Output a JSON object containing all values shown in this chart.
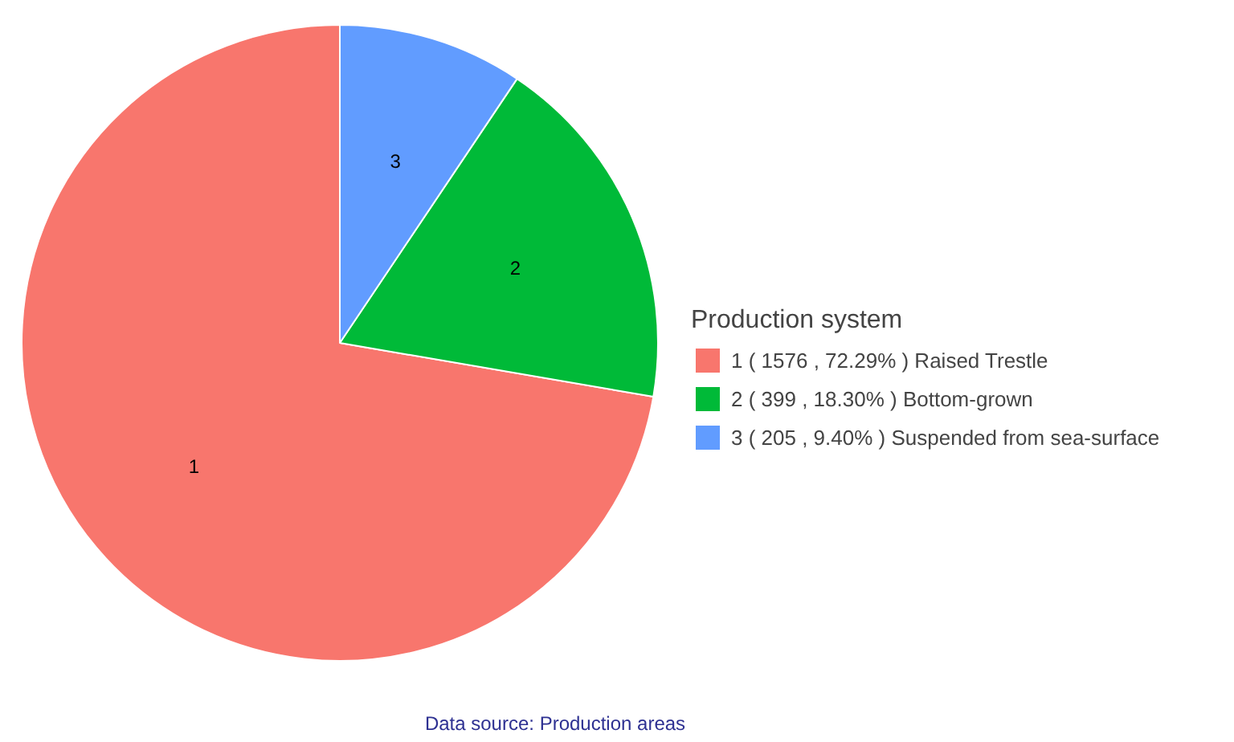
{
  "chart_data": {
    "type": "pie",
    "categories": [
      "1 ( 1576 , 72.29% ) Raised Trestle",
      "2 ( 399 , 18.30% ) Bottom-grown",
      "3 ( 205 , 9.40% ) Suspended from sea-surface"
    ],
    "values": [
      1576,
      399,
      205
    ],
    "colors": [
      "#f8766d",
      "#00ba38",
      "#619cff"
    ],
    "legend_title": "Production system",
    "legend": "right",
    "annotations": [
      {
        "text": "1",
        "x": "1 ( 1576 , 72.29% ) Raised Trestle"
      },
      {
        "text": "2",
        "x": "2 ( 399 , 18.30% ) Bottom-grown"
      },
      {
        "text": "3",
        "x": "3 ( 205 , 9.40% ) Suspended from sea-surface"
      },
      "Data source: Production areas"
    ]
  }
}
